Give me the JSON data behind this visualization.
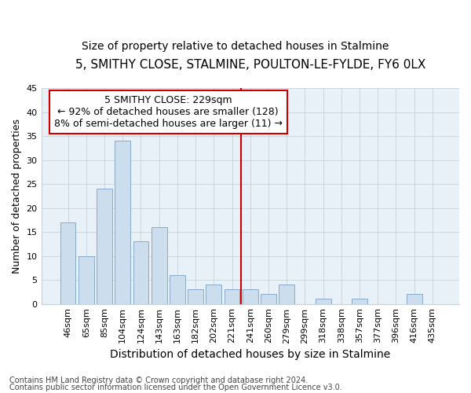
{
  "title1": "5, SMITHY CLOSE, STALMINE, POULTON-LE-FYLDE, FY6 0LX",
  "title2": "Size of property relative to detached houses in Stalmine",
  "xlabel": "Distribution of detached houses by size in Stalmine",
  "ylabel": "Number of detached properties",
  "footnote1": "Contains HM Land Registry data © Crown copyright and database right 2024.",
  "footnote2": "Contains public sector information licensed under the Open Government Licence v3.0.",
  "categories": [
    "46sqm",
    "65sqm",
    "85sqm",
    "104sqm",
    "124sqm",
    "143sqm",
    "163sqm",
    "182sqm",
    "202sqm",
    "221sqm",
    "241sqm",
    "260sqm",
    "279sqm",
    "299sqm",
    "318sqm",
    "338sqm",
    "357sqm",
    "377sqm",
    "396sqm",
    "416sqm",
    "435sqm"
  ],
  "values": [
    17,
    10,
    24,
    34,
    13,
    16,
    6,
    3,
    4,
    3,
    3,
    2,
    4,
    0,
    1,
    0,
    1,
    0,
    0,
    2,
    0
  ],
  "bar_color": "#ccdded",
  "bar_edge_color": "#88aac8",
  "vline_x_index": 9.5,
  "vline_color": "#cc0000",
  "annotation_line1": "5 SMITHY CLOSE: 229sqm",
  "annotation_line2": "← 92% of detached houses are smaller (128)",
  "annotation_line3": "8% of semi-detached houses are larger (11) →",
  "annotation_box_color": "#ffffff",
  "annotation_box_edge_color": "#cc0000",
  "ylim": [
    0,
    45
  ],
  "yticks": [
    0,
    5,
    10,
    15,
    20,
    25,
    30,
    35,
    40,
    45
  ],
  "fig_bg_color": "#ffffff",
  "plot_bg_color": "#e8f0f8",
  "title1_fontsize": 11,
  "title2_fontsize": 10,
  "xlabel_fontsize": 10,
  "ylabel_fontsize": 9,
  "tick_fontsize": 8,
  "annotation_fontsize": 9,
  "footnote_fontsize": 7
}
